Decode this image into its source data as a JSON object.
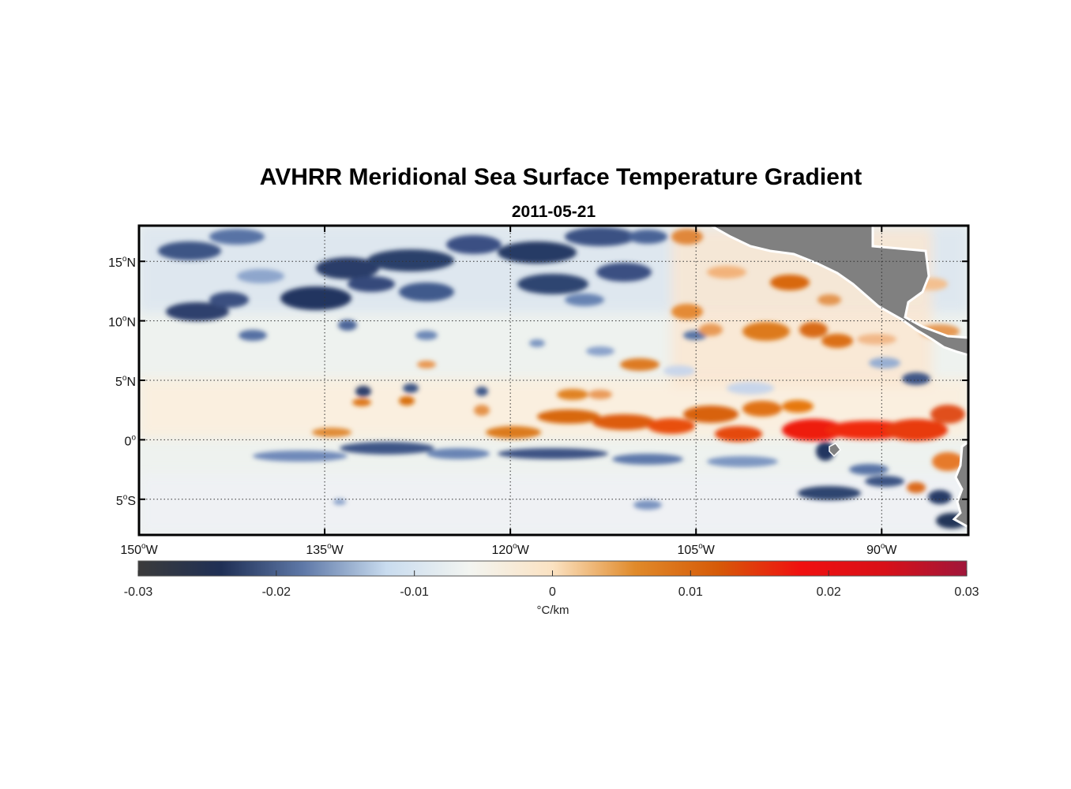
{
  "title": "AVHRR Meridional Sea Surface Temperature Gradient",
  "subtitle": "2011-05-21",
  "map": {
    "lon_range": [
      -150,
      -83
    ],
    "lat_range": [
      -8,
      18
    ],
    "lat_ticks": [
      {
        "value": 15,
        "label": "15",
        "hemi": "N"
      },
      {
        "value": 10,
        "label": "10",
        "hemi": "N"
      },
      {
        "value": 5,
        "label": "5",
        "hemi": "N"
      },
      {
        "value": 0,
        "label": "0",
        "hemi": ""
      },
      {
        "value": -5,
        "label": "5",
        "hemi": "S"
      }
    ],
    "lon_ticks": [
      {
        "value": -150,
        "label": "150",
        "hemi": "W"
      },
      {
        "value": -135,
        "label": "135",
        "hemi": "W"
      },
      {
        "value": -120,
        "label": "120",
        "hemi": "W"
      },
      {
        "value": -105,
        "label": "105",
        "hemi": "W"
      },
      {
        "value": -90,
        "label": "90",
        "hemi": "W"
      }
    ],
    "grid": true,
    "land_color": "#808080"
  },
  "colorbar": {
    "range": [
      -0.03,
      0.03
    ],
    "ticks": [
      -0.03,
      -0.02,
      -0.01,
      0,
      0.01,
      0.02,
      0.03
    ],
    "tick_labels": [
      "-0.03",
      "-0.02",
      "-0.01",
      "0",
      "0.01",
      "0.02",
      "0.03"
    ],
    "label": "°C/km",
    "colors": [
      "#3b3b3b",
      "#1f2f55",
      "#5f79a8",
      "#c9dcef",
      "#f3f5f1",
      "#fbe2c2",
      "#e08a2a",
      "#d65a08",
      "#f01010",
      "#d81018",
      "#a0163a"
    ]
  }
}
